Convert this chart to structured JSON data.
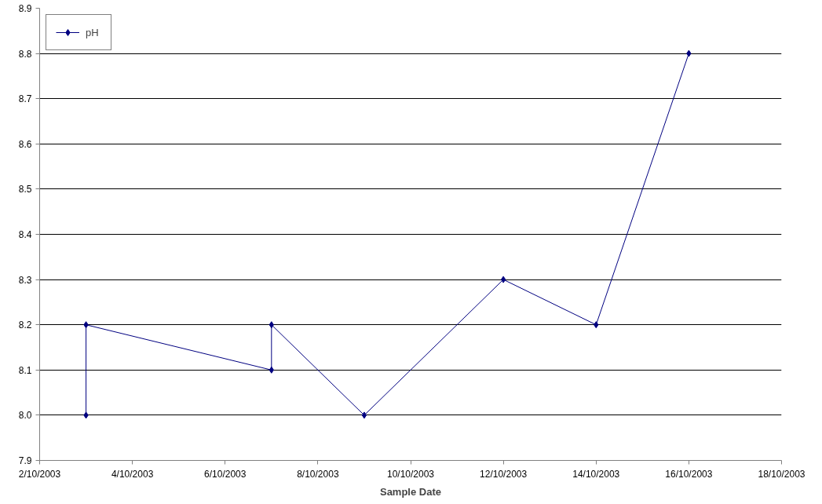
{
  "chart_data": {
    "type": "line",
    "xlabel": "Sample Date",
    "x": [
      "2003-10-03",
      "2003-10-03",
      "2003-10-07",
      "2003-10-07",
      "2003-10-09",
      "2003-10-12",
      "2003-10-14",
      "2003-10-16"
    ],
    "series": [
      {
        "name": "pH",
        "color": "#000080",
        "values": [
          8.0,
          8.2,
          8.1,
          8.2,
          8.0,
          8.3,
          8.2,
          8.8
        ]
      }
    ],
    "xlim": [
      "2003-10-02",
      "2003-10-18"
    ],
    "xticks": [
      {
        "value": "2003-10-02",
        "label": "2/10/2003"
      },
      {
        "value": "2003-10-04",
        "label": "4/10/2003"
      },
      {
        "value": "2003-10-06",
        "label": "6/10/2003"
      },
      {
        "value": "2003-10-08",
        "label": "8/10/2003"
      },
      {
        "value": "2003-10-10",
        "label": "10/10/2003"
      },
      {
        "value": "2003-10-12",
        "label": "12/10/2003"
      },
      {
        "value": "2003-10-14",
        "label": "14/10/2003"
      },
      {
        "value": "2003-10-16",
        "label": "16/10/2003"
      },
      {
        "value": "2003-10-18",
        "label": "18/10/2003"
      }
    ],
    "ylim": [
      7.9,
      8.9
    ],
    "yticks": [
      7.9,
      {
        "value": 8,
        "label": "8.0"
      },
      8.1,
      8.2,
      8.3,
      8.4,
      8.5,
      8.6,
      8.7,
      8.8,
      8.9
    ],
    "grid": "y",
    "legend": "top left",
    "marker": "diamond",
    "line_style": "solid"
  }
}
